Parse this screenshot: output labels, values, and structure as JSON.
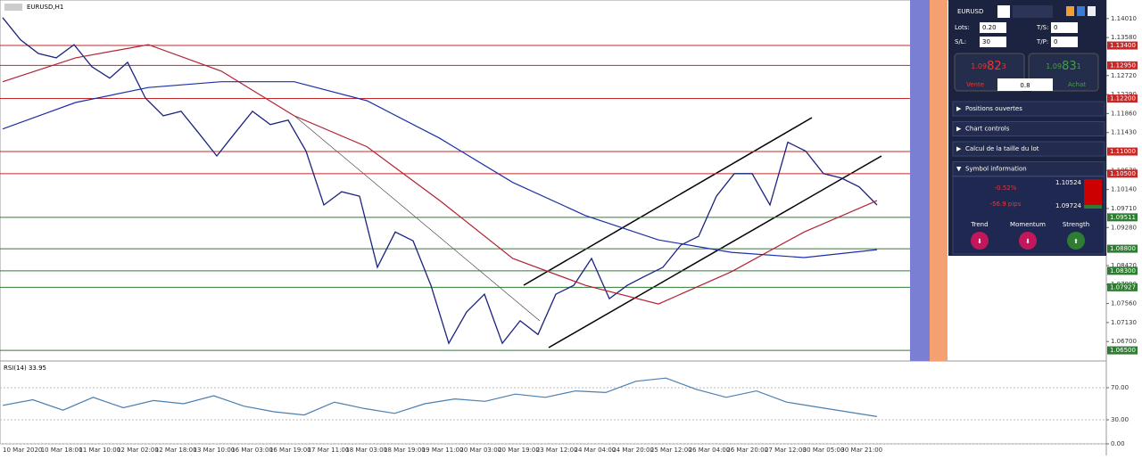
{
  "header": {
    "symbol_timeframe": "EURUSD,H1"
  },
  "chart_data": [
    {
      "type": "line",
      "ylim": [
        1.0626,
        1.1443
      ],
      "yticks": [
        {
          "value": 1.1401,
          "label": "1.14010"
        },
        {
          "value": 1.1358,
          "label": "1.13580"
        },
        {
          "value": 1.1272,
          "label": "1.12720"
        },
        {
          "value": 1.1229,
          "label": "1.12290"
        },
        {
          "value": 1.1186,
          "label": "1.11860"
        },
        {
          "value": 1.1143,
          "label": "1.11430"
        },
        {
          "value": 1.1057,
          "label": "1.10570"
        },
        {
          "value": 1.1014,
          "label": "1.10140"
        },
        {
          "value": 1.0971,
          "label": "1.09710"
        },
        {
          "value": 1.0928,
          "label": "1.09280"
        },
        {
          "value": 1.0842,
          "label": "1.08420"
        },
        {
          "value": 1.0799,
          "label": "1.07990"
        },
        {
          "value": 1.0756,
          "label": "1.07560"
        },
        {
          "value": 1.0713,
          "label": "1.07130"
        },
        {
          "value": 1.067,
          "label": "1.06700"
        }
      ],
      "levels": [
        {
          "value": 1.134,
          "label": "1.13400",
          "color": "#c62828"
        },
        {
          "value": 1.1295,
          "label": "1.12950",
          "color": "#c62828"
        },
        {
          "value": 1.122,
          "label": "1.12200",
          "color": "#c62828"
        },
        {
          "value": 1.11,
          "label": "1.11000",
          "color": "#c62828"
        },
        {
          "value": 1.105,
          "label": "1.10500",
          "color": "#c62828"
        },
        {
          "value": 1.09511,
          "label": "1.09511",
          "color": "#2e7d32"
        },
        {
          "value": 1.088,
          "label": "1.08800",
          "color": "#2e7d32"
        },
        {
          "value": 1.083,
          "label": "1.08300",
          "color": "#2e7d32"
        },
        {
          "value": 1.07927,
          "label": "1.07927",
          "color": "#2e7d32"
        },
        {
          "value": 1.065,
          "label": "1.06500",
          "color": "#2e7d32"
        }
      ],
      "series": [
        {
          "color": "#1a237e",
          "values": [
            1.1403,
            1.1353,
            1.1322,
            1.1312,
            1.1342,
            1.1292,
            1.1266,
            1.1302,
            1.1221,
            1.1181,
            1.1191,
            1.1141,
            1.109,
            1.1141,
            1.1191,
            1.1161,
            1.1171,
            1.1101,
            1.0979,
            1.1009,
            1.0999,
            1.0838,
            1.0918,
            1.0898,
            1.0797,
            1.0666,
            1.0737,
            1.0777,
            1.0666,
            1.0717,
            1.0686,
            1.0777,
            1.0797,
            1.0858,
            1.0767,
            1.0797,
            1.0818,
            1.0838,
            1.0888,
            1.0908,
            1.0999,
            1.105,
            1.105,
            1.0979,
            1.1121,
            1.1101,
            1.105,
            1.104,
            1.102,
            1.0979
          ]
        },
        {
          "color": "#b22234",
          "values": [
            1.1258,
            1.1312,
            1.1342,
            1.1282,
            1.1181,
            1.1111,
            1.0989,
            1.0858,
            1.0797,
            1.0755,
            1.0828,
            1.0918,
            1.0989
          ]
        },
        {
          "color": "#1c2fa8",
          "values": [
            1.1151,
            1.1211,
            1.1245,
            1.1258,
            1.1258,
            1.1215,
            1.113,
            1.103,
            1.0955,
            1.09,
            1.0872,
            1.086,
            1.0878
          ]
        }
      ],
      "x_labels": [
        "10 Mar 2020",
        "10 Mar 18:00",
        "11 Mar 10:00",
        "12 Mar 02:00",
        "12 Mar 18:00",
        "13 Mar 10:00",
        "16 Mar 03:00",
        "16 Mar 19:00",
        "17 Mar 11:00",
        "18 Mar 03:00",
        "18 Mar 19:00",
        "19 Mar 11:00",
        "20 Mar 03:00",
        "20 Mar 19:00",
        "23 Mar 12:00",
        "24 Mar 04:00",
        "24 Mar 20:00",
        "25 Mar 12:00",
        "26 Mar 04:00",
        "26 Mar 20:00",
        "27 Mar 12:00",
        "30 Mar 05:00",
        "30 Mar 21:00"
      ]
    },
    {
      "type": "line",
      "title": "RSI(14) 33.95",
      "ylim": [
        0,
        100
      ],
      "yticks": [
        {
          "value": 70,
          "label": "70.00"
        },
        {
          "value": 30,
          "label": "30.00"
        },
        {
          "value": 0,
          "label": "0.00"
        }
      ],
      "series": [
        {
          "color": "#4a7fb0",
          "values": [
            48,
            55,
            42,
            58,
            45,
            54,
            50,
            60,
            47,
            40,
            36,
            52,
            44,
            38,
            50,
            56,
            53,
            62,
            58,
            66,
            64,
            78,
            82,
            68,
            58,
            66,
            52,
            46,
            40,
            34
          ]
        }
      ]
    }
  ],
  "panel": {
    "symbol": "EURUSD",
    "lots_label": "Lots:",
    "lots": "0.20",
    "ts_label": "T/S:",
    "ts": "0",
    "sl_label": "S/L:",
    "sl": "30",
    "tp_label": "T/P:",
    "tp": "0",
    "sell": {
      "prefix": "1.09",
      "big": "82",
      "suffix": "3",
      "label": "Vente"
    },
    "buy": {
      "prefix": "1.09",
      "big": "83",
      "suffix": "1",
      "label": "Achat"
    },
    "spread": "0.8",
    "sections": [
      "Positions ouvertes",
      "Chart controls",
      "Calcul de la taille du lot",
      "Symbol information"
    ],
    "info": {
      "change": "-0.52%",
      "pips": "-56.9 pips",
      "high": "1.10524",
      "low": "1.09724",
      "indicators": [
        "Trend",
        "Momentum",
        "Strength"
      ]
    }
  }
}
